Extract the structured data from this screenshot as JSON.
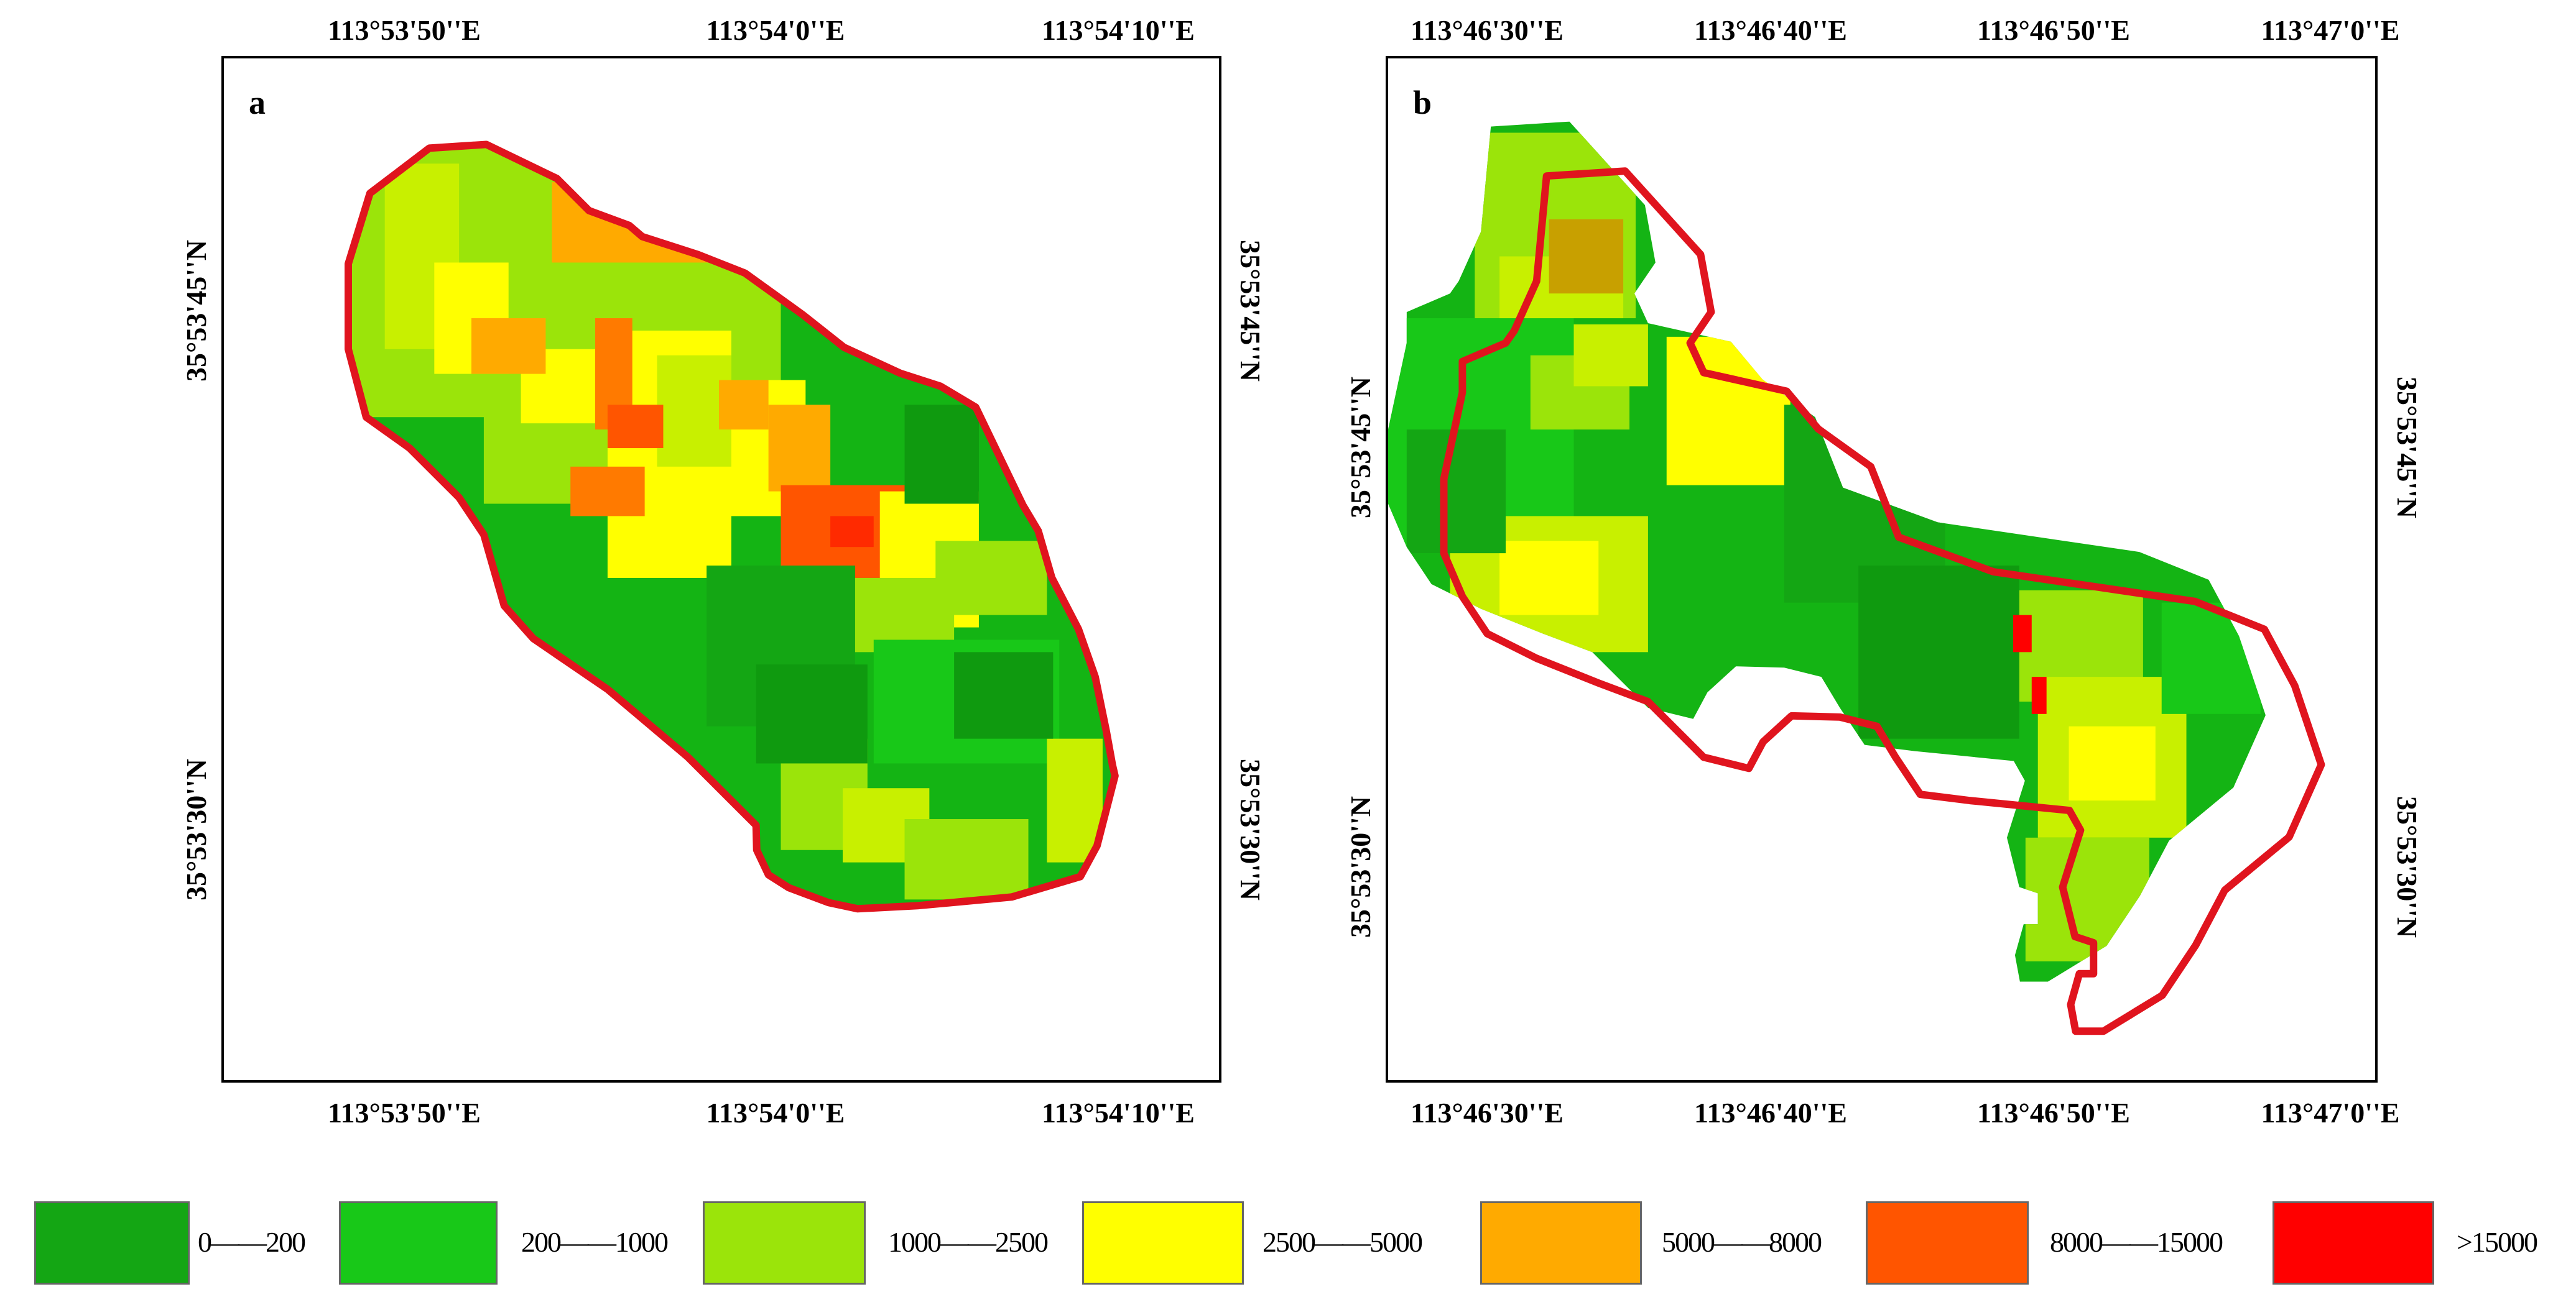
{
  "panels": [
    {
      "label": "a",
      "top_ticks": [
        "113°53'50''E",
        "113°54'0''E",
        "113°54'10''E"
      ],
      "bottom_ticks": [
        "113°53'50''E",
        "113°54'0''E",
        "113°54'10''E"
      ],
      "left_ticks": [
        "35°53'45''N",
        "35°53'30''N"
      ],
      "right_ticks": [
        "35°53'45''N",
        "35°53'30''N"
      ]
    },
    {
      "label": "b",
      "top_ticks": [
        "113°46'30''E",
        "113°46'40''E",
        "113°46'50''E",
        "113°47'0''E"
      ],
      "bottom_ticks": [
        "113°46'30''E",
        "113°46'40''E",
        "113°46'50''E",
        "113°47'0''E"
      ],
      "left_ticks": [
        "35°53'45''N",
        "35°53'30''N"
      ],
      "right_ticks": [
        "35°53'45''N",
        "35°53'30''N"
      ]
    }
  ],
  "legend": [
    {
      "label": "0——200",
      "color": "#14a614"
    },
    {
      "label": "200——1000",
      "color": "#18c818"
    },
    {
      "label": "1000——2500",
      "color": "#9be40a"
    },
    {
      "label": "2500——5000",
      "color": "#ffff00"
    },
    {
      "label": "5000——8000",
      "color": "#ffaa00"
    },
    {
      "label": "8000——15000",
      "color": "#ff5500"
    },
    {
      "label": ">15000",
      "color": "#ff0000"
    }
  ],
  "boundary_color": "#e0141e"
}
